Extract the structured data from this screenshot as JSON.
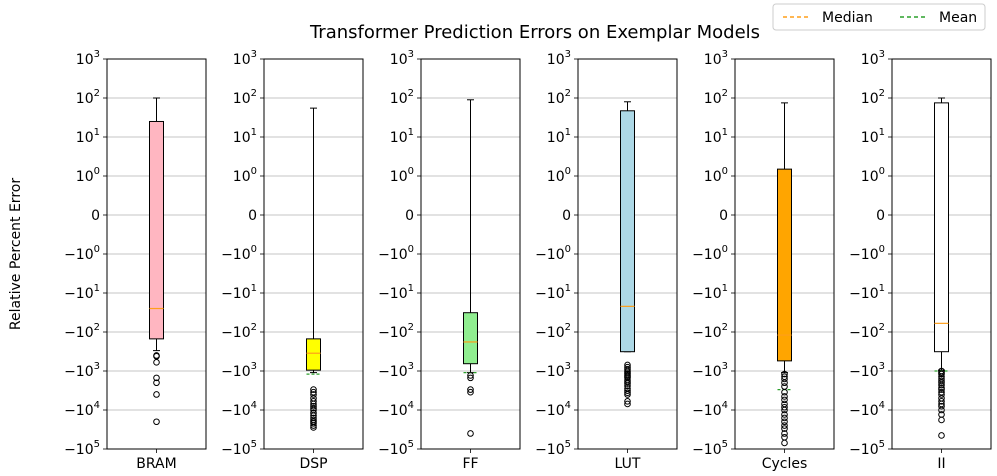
{
  "chart_data": {
    "type": "box",
    "title": "Transformer Prediction Errors on Exemplar Models",
    "ylabel": "Relative Percent Error",
    "yscale": "symlog",
    "ylim": [
      -100000,
      1000
    ],
    "y_ticks": [
      {
        "value": 1000,
        "base": "10",
        "exp": "3",
        "neg": false
      },
      {
        "value": 100,
        "base": "10",
        "exp": "2",
        "neg": false
      },
      {
        "value": 10,
        "base": "10",
        "exp": "1",
        "neg": false
      },
      {
        "value": 1,
        "base": "10",
        "exp": "0",
        "neg": false
      },
      {
        "value": 0,
        "plain": "0"
      },
      {
        "value": -1,
        "base": "10",
        "exp": "0",
        "neg": true
      },
      {
        "value": -10,
        "base": "10",
        "exp": "1",
        "neg": true
      },
      {
        "value": -100,
        "base": "10",
        "exp": "2",
        "neg": true
      },
      {
        "value": -1000,
        "base": "10",
        "exp": "3",
        "neg": true
      },
      {
        "value": -10000,
        "base": "10",
        "exp": "4",
        "neg": true
      },
      {
        "value": -100000,
        "base": "10",
        "exp": "5",
        "neg": true
      }
    ],
    "grid": true,
    "legend": {
      "placement": "top-right",
      "entries": [
        {
          "label": "Median",
          "color": "#ff9f1a",
          "style": "dashed"
        },
        {
          "label": "Mean",
          "color": "#2ca02c",
          "style": "dashed"
        }
      ]
    },
    "panels": [
      {
        "name": "BRAM",
        "color": "#ffb6c1",
        "whisker_low": -300,
        "q1": -150,
        "median": -25,
        "mean": null,
        "q3": 25,
        "whisker_high": 100,
        "outliers": [
          -400,
          -420,
          -600,
          -1500,
          -2000,
          -4000,
          -20000
        ]
      },
      {
        "name": "DSP",
        "color": "#ffff00",
        "whisker_low": -1100,
        "q1": -950,
        "median": -350,
        "mean": -1200,
        "q3": -150,
        "whisker_high": 55,
        "outliers": [
          -3000,
          -3500,
          -4000,
          -5000,
          -6000,
          -7000,
          -8000,
          -9000,
          -10000,
          -12000,
          -14000,
          -16000,
          -18000,
          -20000,
          -22000,
          -25000,
          -28000
        ]
      },
      {
        "name": "FF",
        "color": "#90ee90",
        "whisker_low": -1100,
        "q1": -650,
        "median": -180,
        "mean": -1100,
        "q3": -32,
        "whisker_high": 90,
        "outliers": [
          -1300,
          -1500,
          -3000,
          -3500,
          -40000
        ]
      },
      {
        "name": "LUT",
        "color": "#add8e6",
        "whisker_low": -320,
        "q1": -320,
        "median": -22,
        "mean": null,
        "q3": 47,
        "whisker_high": 80,
        "outliers": [
          -700,
          -800,
          -900,
          -1000,
          -1100,
          -1200,
          -1300,
          -1400,
          -1500,
          -1700,
          -1900,
          -2100,
          -2400,
          -2800,
          -3200,
          -3600,
          -4000,
          -6000,
          -7000
        ]
      },
      {
        "name": "Cycles",
        "color": "#ffa500",
        "whisker_low": -1100,
        "q1": -550,
        "median": -120,
        "mean": -3000,
        "q3": 1.5,
        "whisker_high": 75,
        "outliers": [
          -1200,
          -1400,
          -1600,
          -2000,
          -2500,
          -3500,
          -4500,
          -5500,
          -7000,
          -8500,
          -10000,
          -13000,
          -16000,
          -20000,
          -25000,
          -30000,
          -40000,
          -50000,
          -70000
        ]
      },
      {
        "name": "II",
        "color": "#ffffff",
        "whisker_low": -950,
        "q1": -320,
        "median": -60,
        "mean": -1000,
        "q3": 75,
        "whisker_high": 100,
        "outliers": [
          -1000,
          -1100,
          -1200,
          -1400,
          -1600,
          -1800,
          -2000,
          -2300,
          -2700,
          -3000,
          -3500,
          -4000,
          -5000,
          -6000,
          -7000,
          -8000,
          -10000,
          -13000,
          -18000,
          -45000
        ]
      }
    ]
  }
}
